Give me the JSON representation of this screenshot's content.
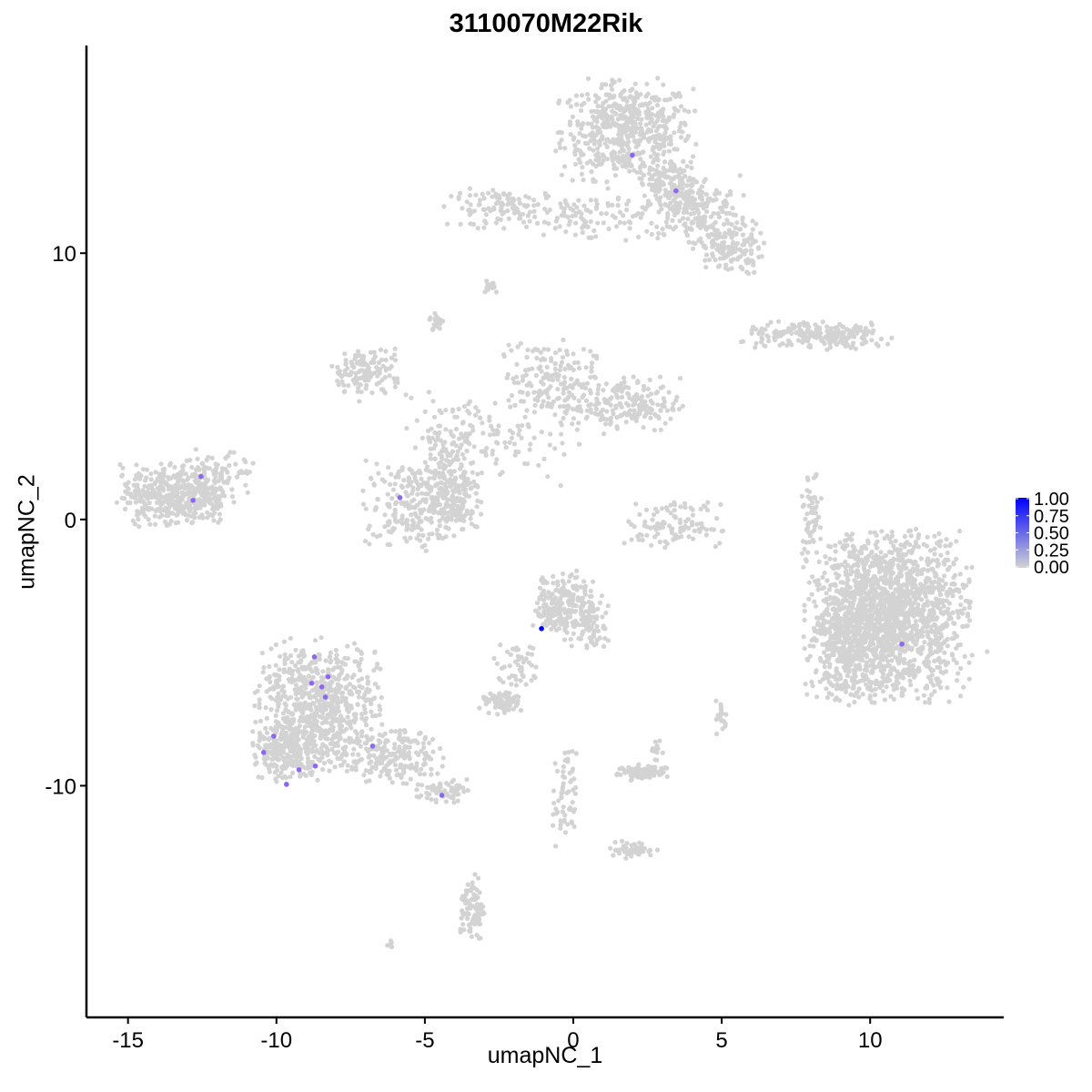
{
  "chart_data": {
    "type": "scatter",
    "title": "3110070M22Rik",
    "xlabel": "umapNC_1",
    "ylabel": "umapNC_2",
    "xlim": [
      -16.4,
      14.5
    ],
    "ylim": [
      -18.7,
      17.8
    ],
    "x_ticks": [
      -15,
      -10,
      -5,
      0,
      5,
      10
    ],
    "y_ticks": [
      -10,
      0,
      10
    ],
    "grid": false,
    "colors": {
      "low": "#d3d3d3",
      "high": "#0000ff"
    },
    "legend": {
      "position": "right",
      "type": "colorbar",
      "range": [
        0,
        1
      ],
      "labels": [
        "1.00",
        "0.75",
        "0.50",
        "0.25",
        "0.00"
      ]
    },
    "background_clusters": [
      {
        "center": [
          1.8,
          14.6
        ],
        "sd": [
          1.1,
          0.9
        ],
        "n": 550
      },
      {
        "center": [
          4.0,
          11.7
        ],
        "sd": [
          0.8,
          0.6
        ],
        "n": 200
      },
      {
        "center": [
          5.2,
          10.2
        ],
        "sd": [
          0.6,
          0.5
        ],
        "n": 160
      },
      {
        "center": [
          3.2,
          12.6
        ],
        "sd": [
          0.5,
          0.5
        ],
        "n": 120
      },
      {
        "center": [
          -2.1,
          11.7
        ],
        "sd": [
          1.0,
          0.35
        ],
        "n": 120
      },
      {
        "center": [
          0.6,
          11.3
        ],
        "sd": [
          0.8,
          0.5
        ],
        "n": 80
      },
      {
        "center": [
          -7.0,
          5.5
        ],
        "sd": [
          0.6,
          0.5
        ],
        "n": 130
      },
      {
        "center": [
          -0.9,
          5.3
        ],
        "sd": [
          0.8,
          0.7
        ],
        "n": 160
      },
      {
        "center": [
          1.6,
          4.3
        ],
        "sd": [
          1.0,
          0.5
        ],
        "n": 200
      },
      {
        "center": [
          -2.8,
          3.0
        ],
        "sd": [
          1.4,
          0.8
        ],
        "n": 120
      },
      {
        "center": [
          -4.3,
          2.6
        ],
        "sd": [
          0.4,
          1.0
        ],
        "n": 90
      },
      {
        "center": [
          -5.4,
          0.5
        ],
        "sd": [
          0.8,
          0.8
        ],
        "n": 220
      },
      {
        "center": [
          -4.1,
          0.9
        ],
        "sd": [
          0.5,
          0.7
        ],
        "n": 150
      },
      {
        "center": [
          -13.4,
          0.9
        ],
        "sd": [
          0.9,
          0.55
        ],
        "n": 420
      },
      {
        "center": [
          -12.0,
          1.7
        ],
        "sd": [
          0.7,
          0.5
        ],
        "n": 80
      },
      {
        "center": [
          8.3,
          6.9
        ],
        "sd": [
          1.3,
          0.25
        ],
        "n": 220
      },
      {
        "center": [
          3.4,
          -0.2
        ],
        "sd": [
          0.8,
          0.4
        ],
        "n": 110
      },
      {
        "center": [
          8.0,
          0.3
        ],
        "sd": [
          0.2,
          0.8
        ],
        "n": 50
      },
      {
        "center": [
          10.6,
          -3.6
        ],
        "sd": [
          1.3,
          1.5
        ],
        "n": 1700
      },
      {
        "center": [
          9.2,
          -5.0
        ],
        "sd": [
          0.6,
          0.9
        ],
        "n": 200
      },
      {
        "center": [
          -8.6,
          -7.0
        ],
        "sd": [
          1.0,
          1.2
        ],
        "n": 700
      },
      {
        "center": [
          -9.7,
          -8.7
        ],
        "sd": [
          0.6,
          0.6
        ],
        "n": 200
      },
      {
        "center": [
          -6.2,
          -8.9
        ],
        "sd": [
          0.9,
          0.5
        ],
        "n": 200
      },
      {
        "center": [
          -4.4,
          -10.2
        ],
        "sd": [
          0.4,
          0.2
        ],
        "n": 60
      },
      {
        "center": [
          -0.3,
          -3.2
        ],
        "sd": [
          0.5,
          0.6
        ],
        "n": 220
      },
      {
        "center": [
          0.6,
          -3.9
        ],
        "sd": [
          0.3,
          0.5
        ],
        "n": 80
      },
      {
        "center": [
          -1.8,
          -5.5
        ],
        "sd": [
          0.4,
          0.5
        ],
        "n": 50
      },
      {
        "center": [
          -2.4,
          -6.9
        ],
        "sd": [
          0.35,
          0.2
        ],
        "n": 70
      },
      {
        "center": [
          2.3,
          -9.5
        ],
        "sd": [
          0.4,
          0.15
        ],
        "n": 90
      },
      {
        "center": [
          -0.3,
          -10.6
        ],
        "sd": [
          0.2,
          0.9
        ],
        "n": 60
      },
      {
        "center": [
          2.0,
          -12.4
        ],
        "sd": [
          0.4,
          0.15
        ],
        "n": 50
      },
      {
        "center": [
          -3.4,
          -14.6
        ],
        "sd": [
          0.2,
          0.6
        ],
        "n": 90
      },
      {
        "center": [
          -2.8,
          8.8
        ],
        "sd": [
          0.15,
          0.15
        ],
        "n": 15
      },
      {
        "center": [
          -4.6,
          7.4
        ],
        "sd": [
          0.12,
          0.2
        ],
        "n": 20
      },
      {
        "center": [
          5.0,
          -7.4
        ],
        "sd": [
          0.1,
          0.3
        ],
        "n": 20
      },
      {
        "center": [
          2.8,
          -8.7
        ],
        "sd": [
          0.1,
          0.3
        ],
        "n": 15
      },
      {
        "center": [
          -6.1,
          -16.0
        ],
        "sd": [
          0.1,
          0.1
        ],
        "n": 6
      }
    ],
    "expressing_cells": [
      {
        "x": 1.99,
        "y": 13.68,
        "value": 0.55
      },
      {
        "x": 3.46,
        "y": 12.34,
        "value": 0.55
      },
      {
        "x": -12.54,
        "y": 1.61,
        "value": 0.55
      },
      {
        "x": -12.81,
        "y": 0.72,
        "value": 0.55
      },
      {
        "x": -5.84,
        "y": 0.82,
        "value": 0.55
      },
      {
        "x": -1.07,
        "y": -4.1,
        "value": 1.0
      },
      {
        "x": 11.07,
        "y": -4.68,
        "value": 0.55
      },
      {
        "x": -8.72,
        "y": -5.16,
        "value": 0.55
      },
      {
        "x": -8.81,
        "y": -6.15,
        "value": 0.55
      },
      {
        "x": -8.26,
        "y": -5.91,
        "value": 0.55
      },
      {
        "x": -8.47,
        "y": -6.29,
        "value": 0.55
      },
      {
        "x": -8.35,
        "y": -6.67,
        "value": 0.55
      },
      {
        "x": -10.09,
        "y": -8.14,
        "value": 0.55
      },
      {
        "x": -10.43,
        "y": -8.75,
        "value": 0.55
      },
      {
        "x": -6.76,
        "y": -8.51,
        "value": 0.55
      },
      {
        "x": -8.69,
        "y": -9.26,
        "value": 0.55
      },
      {
        "x": -9.24,
        "y": -9.4,
        "value": 0.55
      },
      {
        "x": -9.66,
        "y": -9.95,
        "value": 0.55
      },
      {
        "x": -4.43,
        "y": -10.36,
        "value": 0.55
      }
    ]
  }
}
